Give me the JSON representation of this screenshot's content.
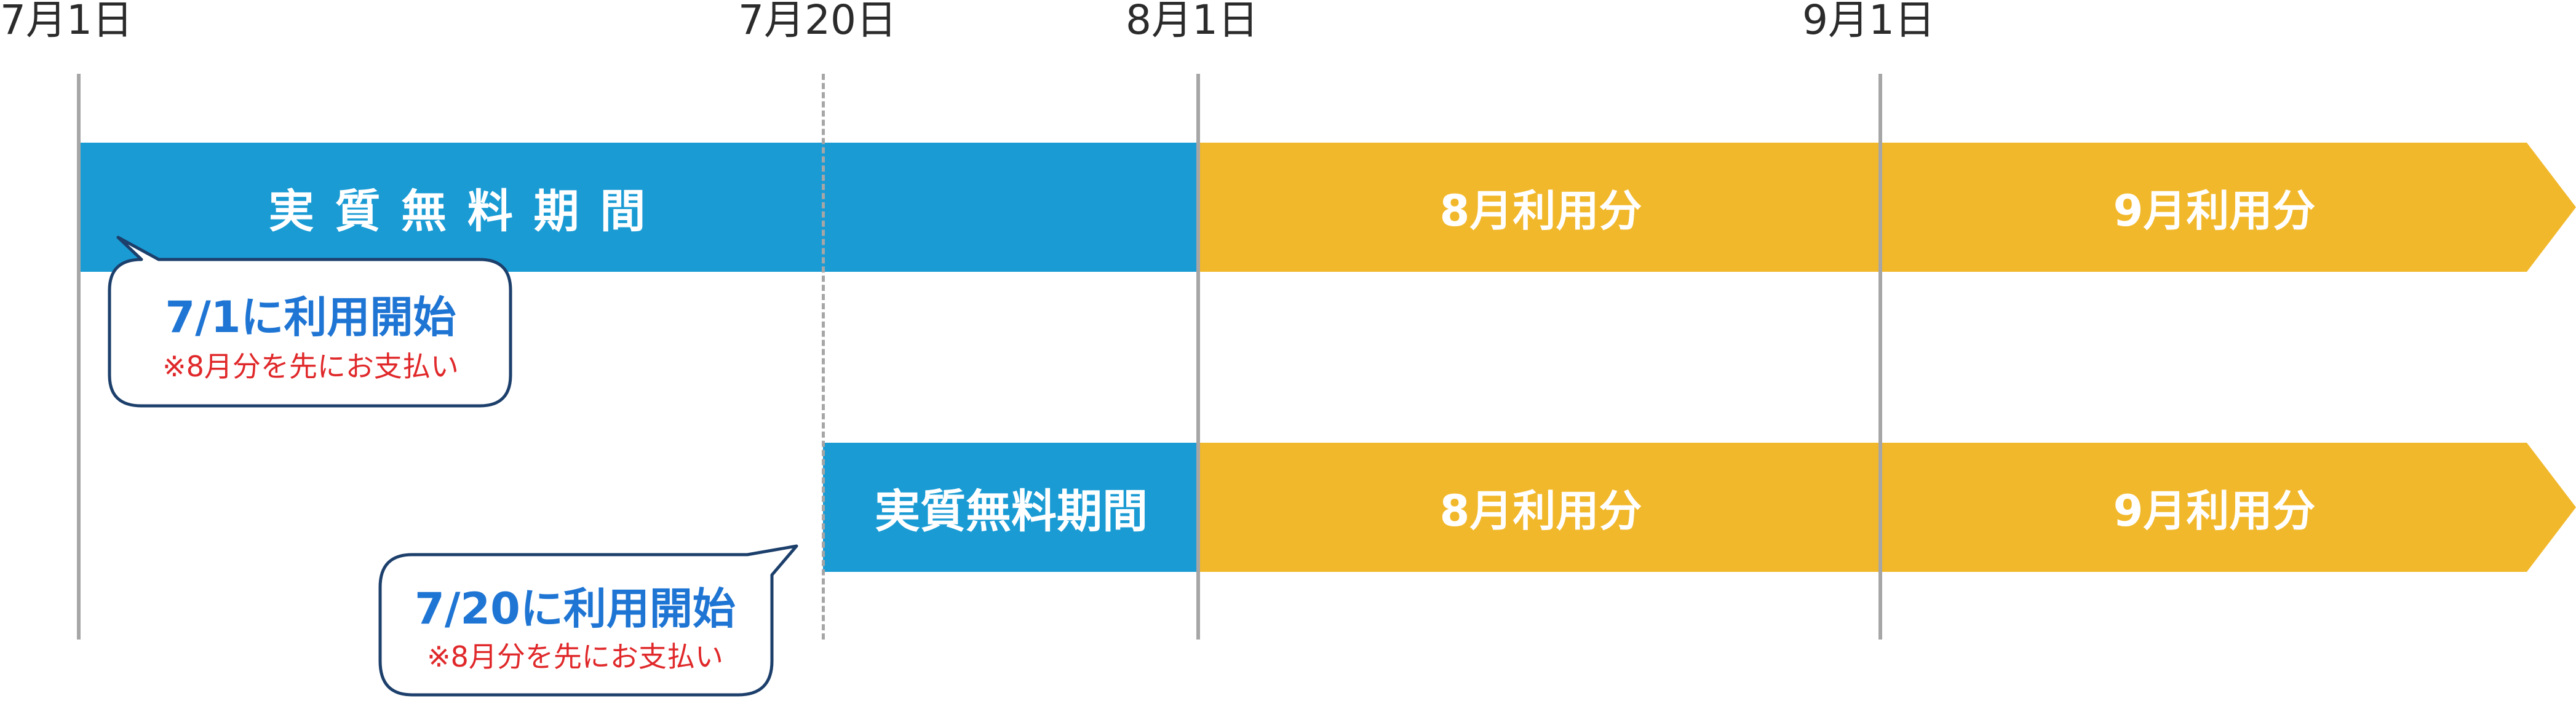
{
  "colors": {
    "free": "#1a9bd4",
    "paid": "#f2b82b",
    "axis": "#a6a6a6",
    "callout_title": "#1f75d3",
    "callout_note": "#e0282a"
  },
  "dates": {
    "jul1": "7月1日",
    "jul20": "7月20日",
    "aug1": "8月1日",
    "sep1": "9月1日"
  },
  "row1": {
    "free_label": "実 質 無 料 期 間",
    "aug_label": "8月利用分",
    "sep_label": "9月利用分"
  },
  "row2": {
    "free_label": "実質無料期間",
    "aug_label": "8月利用分",
    "sep_label": "9月利用分"
  },
  "callout1": {
    "title": "7/1に利用開始",
    "note": "※8月分を先にお支払い"
  },
  "callout2": {
    "title": "7/20に利用開始",
    "note": "※8月分を先にお支払い"
  }
}
